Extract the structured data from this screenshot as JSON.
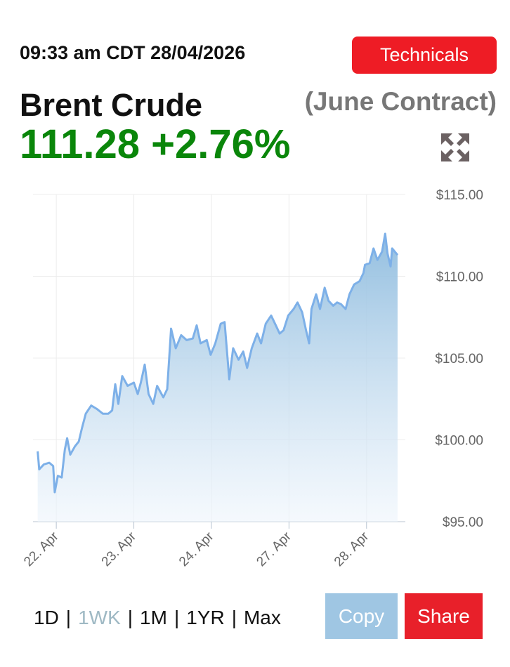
{
  "header": {
    "timestamp": "09:33 am CDT 28/04/2026",
    "technicals": "Technicals",
    "name": "Brent Crude",
    "contract": "(June Contract)",
    "price": "111.28",
    "change": "+2.76%"
  },
  "chart_data": {
    "type": "area",
    "color": "#7db0e8",
    "grid": true,
    "x": [
      -0.24,
      -0.22,
      -0.16,
      -0.09,
      -0.04,
      -0.02,
      0.02,
      0.07,
      0.11,
      0.14,
      0.18,
      0.24,
      0.29,
      0.33,
      0.38,
      0.45,
      0.52,
      0.6,
      0.67,
      0.72,
      0.76,
      0.8,
      0.85,
      0.92,
      1.0,
      1.05,
      1.09,
      1.14,
      1.19,
      1.25,
      1.3,
      1.38,
      1.43,
      1.48,
      1.54,
      1.61,
      1.68,
      1.76,
      1.81,
      1.86,
      1.94,
      1.99,
      2.05,
      2.12,
      2.17,
      2.23,
      2.28,
      2.35,
      2.41,
      2.46,
      2.52,
      2.59,
      2.64,
      2.7,
      2.77,
      2.82,
      2.88,
      2.93,
      2.99,
      3.06,
      3.11,
      3.17,
      3.22,
      3.26,
      3.29,
      3.35,
      3.4,
      3.46,
      3.51,
      3.57,
      3.62,
      3.67,
      3.73,
      3.78,
      3.84,
      3.91,
      3.96,
      3.98,
      4.04,
      4.09,
      4.14,
      4.2,
      4.24,
      4.27,
      4.31,
      4.33,
      4.4
    ],
    "values": [
      99.3,
      98.2,
      98.5,
      98.6,
      98.4,
      96.8,
      97.8,
      97.7,
      99.4,
      100.1,
      99.1,
      99.6,
      99.9,
      100.7,
      101.6,
      102.1,
      101.9,
      101.6,
      101.6,
      101.8,
      103.4,
      102.2,
      103.9,
      103.3,
      103.5,
      102.8,
      103.5,
      104.6,
      102.8,
      102.2,
      103.3,
      102.6,
      103.1,
      106.8,
      105.6,
      106.4,
      106.1,
      106.2,
      107.0,
      105.9,
      106.1,
      105.2,
      105.9,
      107.1,
      107.2,
      103.7,
      105.6,
      104.9,
      105.4,
      104.4,
      105.6,
      106.5,
      105.9,
      107.1,
      107.6,
      107.1,
      106.5,
      106.7,
      107.6,
      108.0,
      108.4,
      107.8,
      106.7,
      105.9,
      108.0,
      108.9,
      108.0,
      109.3,
      108.5,
      108.2,
      108.4,
      108.3,
      108.0,
      108.9,
      109.5,
      109.7,
      110.2,
      110.7,
      110.8,
      111.7,
      111.0,
      111.5,
      112.6,
      111.4,
      110.6,
      111.7,
      111.3
    ],
    "xlim": [
      -0.3,
      4.5
    ],
    "xticks": [
      {
        "value": 0,
        "label": "22. Apr"
      },
      {
        "value": 1,
        "label": "23. Apr"
      },
      {
        "value": 2,
        "label": "24. Apr"
      },
      {
        "value": 3,
        "label": "27. Apr"
      },
      {
        "value": 4,
        "label": "28. Apr"
      }
    ],
    "ylim": [
      95,
      115
    ],
    "yticks": [
      {
        "value": 95,
        "label": "$95.00"
      },
      {
        "value": 100,
        "label": "$100.00"
      },
      {
        "value": 105,
        "label": "$105.00"
      },
      {
        "value": 110,
        "label": "$110.00"
      },
      {
        "value": 115,
        "label": "$115.00"
      }
    ]
  },
  "ranges": {
    "options": [
      "1D",
      "1WK",
      "1M",
      "1YR",
      "Max"
    ],
    "selected": 1
  },
  "buttons": {
    "copy": "Copy",
    "share": "Share"
  }
}
